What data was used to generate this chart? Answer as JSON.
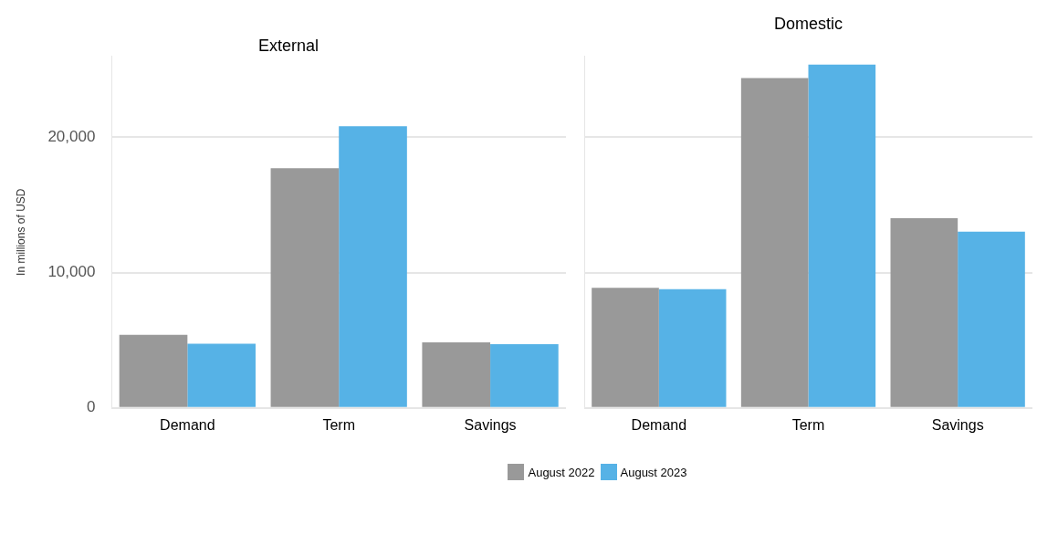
{
  "chart_data": [
    {
      "type": "bar",
      "title": "External",
      "ylabel": "In millions of USD",
      "categories": [
        "Demand",
        "Term",
        "Savings"
      ],
      "series": [
        {
          "name": "August 2022",
          "color": "#999999",
          "values": [
            5410,
            17720,
            4850
          ]
        },
        {
          "name": "August 2023",
          "color": "#56b2e6",
          "values": [
            4750,
            20830,
            4710
          ]
        }
      ],
      "ylim": [
        0,
        26000
      ],
      "yticks": [
        {
          "value": 0,
          "label": "0"
        },
        {
          "value": 10000,
          "label": "10,000"
        },
        {
          "value": 20000,
          "label": "20,000"
        }
      ],
      "grid": "y",
      "legend": "bottom"
    },
    {
      "type": "bar",
      "title": "Domestic",
      "categories": [
        "Demand",
        "Term",
        "Savings"
      ],
      "series": [
        {
          "color": "#999999",
          "values": [
            8880,
            24380,
            14030
          ]
        },
        {
          "color": "#56b2e6",
          "values": [
            8770,
            25390,
            13030
          ]
        }
      ],
      "ylim": [
        0,
        26000
      ],
      "yticks": [
        {
          "value": 0,
          "label": null
        },
        {
          "value": 10000,
          "label": null
        },
        {
          "value": 20000,
          "label": null
        }
      ],
      "grid": "y",
      "tick_labels": "x"
    }
  ]
}
